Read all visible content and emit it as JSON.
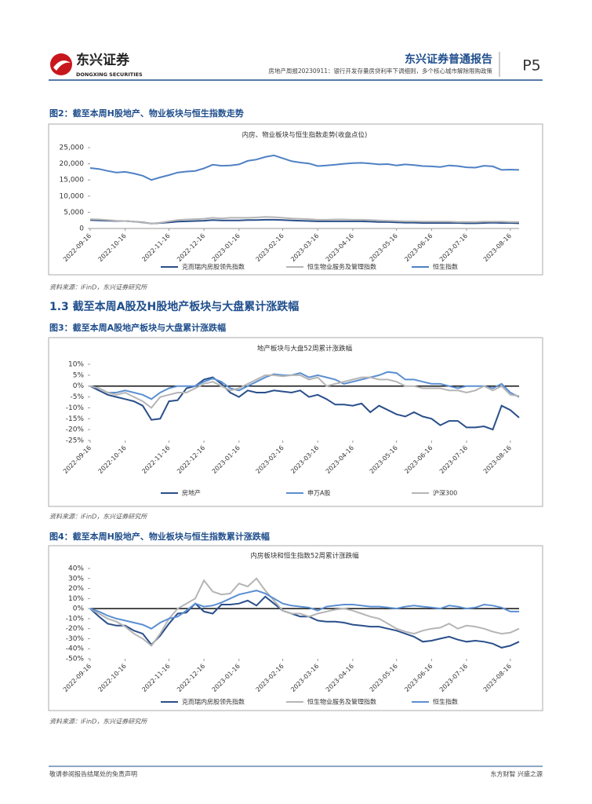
{
  "header": {
    "logo_cn": "东兴证券",
    "logo_en": "DONGXING SECURITIES",
    "report_type": "东兴证券普通报告",
    "report_title": "房地产周报20230911：银行开发存量房贷利率下调细则，多个核心城市解除限购政策",
    "page": "P5"
  },
  "section": "1.3 截至本周A股及H股地产板块与大盘累计涨跌幅",
  "figures": [
    {
      "title": "图2：截至本周H股地产、物业板块与恒生指数走势",
      "source": "资料来源：iFinD，东兴证券研究所"
    },
    {
      "title": "图3：截至本周A股地产板块与大盘累计涨跌幅",
      "source": "资料来源：iFinD，东兴证券研究所"
    },
    {
      "title": "图4：截至本周H股地产、物业板块与恒生指数累计涨跌幅",
      "source": "资料来源：iFinD，东兴证券研究所"
    }
  ],
  "footer": {
    "left": "敬请参阅报告结尾处的免责声明",
    "right": "东方财智 兴盛之源"
  },
  "chart_data": [
    {
      "type": "line",
      "title": "内房、物业板块与恒生指数走势(收盘点位)",
      "categories": [
        "2022-09-16",
        null,
        null,
        null,
        "2022-10-16",
        null,
        null,
        null,
        null,
        "2022-11-16",
        null,
        null,
        null,
        "2022-12-16",
        null,
        null,
        null,
        "2023-01-16",
        null,
        null,
        null,
        null,
        "2023-02-16",
        null,
        null,
        null,
        "2023-03-16",
        null,
        null,
        null,
        "2023-04-16",
        null,
        null,
        null,
        null,
        "2023-05-16",
        null,
        null,
        null,
        "2023-06-16",
        null,
        null,
        null,
        "2023-07-16",
        null,
        null,
        null,
        null,
        "2023-08-16",
        null
      ],
      "ylim": [
        0,
        25000
      ],
      "yticks": [
        0,
        {
          "value": 5000,
          "label": "5,000"
        },
        {
          "value": 10000,
          "label": "10,000"
        },
        {
          "value": 15000,
          "label": "15,000"
        },
        {
          "value": 20000,
          "label": "20,000"
        },
        {
          "value": 25000,
          "label": "25,000"
        }
      ],
      "series": [
        {
          "name": "克而瑞内房股领先指数",
          "color": "#2a4f8a",
          "values": [
            2600,
            2500,
            2400,
            2300,
            2300,
            2100,
            1900,
            1500,
            1700,
            1900,
            2100,
            2200,
            2300,
            2400,
            2600,
            2500,
            2500,
            2500,
            2600,
            2600,
            2700,
            2700,
            2600,
            2500,
            2400,
            2300,
            2200,
            2200,
            2200,
            2200,
            2200,
            2200,
            2100,
            2000,
            2000,
            1900,
            1800,
            1800,
            1700,
            1700,
            1700,
            1700,
            1700,
            1600,
            1600,
            1700,
            1800,
            1700,
            1700,
            1600
          ]
        },
        {
          "name": "恒生物业服务及管理指数",
          "color": "#b5b5b5",
          "values": [
            2900,
            2800,
            2600,
            2400,
            2300,
            2100,
            1800,
            1500,
            1800,
            2200,
            2600,
            2800,
            2900,
            3000,
            3300,
            3100,
            3300,
            3300,
            3300,
            3400,
            3600,
            3500,
            3300,
            3100,
            3000,
            2900,
            2700,
            2700,
            2800,
            2800,
            2700,
            2700,
            2600,
            2500,
            2400,
            2300,
            2200,
            2200,
            2100,
            2100,
            2100,
            2100,
            2000,
            2000,
            2000,
            2100,
            2100,
            2100,
            2000,
            2000
          ]
        },
        {
          "name": "恒生指数",
          "color": "#4f81c4",
          "values": [
            18700,
            18400,
            17800,
            17300,
            17500,
            17000,
            16300,
            15000,
            15800,
            16500,
            17300,
            17600,
            17800,
            18600,
            19700,
            19400,
            19500,
            19800,
            20900,
            21300,
            22100,
            22600,
            21700,
            20800,
            20400,
            20100,
            19300,
            19500,
            19700,
            20000,
            20200,
            20300,
            20100,
            19800,
            19900,
            19500,
            19800,
            19600,
            19300,
            19200,
            19000,
            19500,
            19300,
            18900,
            18800,
            19400,
            19200,
            18100,
            18200,
            18100
          ]
        }
      ]
    },
    {
      "type": "line",
      "title": "地产板块与大盘52周累计涨跌幅",
      "categories": [
        "2022-09-16",
        null,
        null,
        null,
        "2022-10-16",
        null,
        null,
        null,
        null,
        "2022-11-16",
        null,
        null,
        null,
        "2022-12-16",
        null,
        null,
        null,
        "2023-01-16",
        null,
        null,
        null,
        null,
        "2023-02-16",
        null,
        null,
        null,
        "2023-03-16",
        null,
        null,
        null,
        "2023-04-16",
        null,
        null,
        null,
        null,
        "2023-05-16",
        null,
        null,
        null,
        "2023-06-16",
        null,
        null,
        null,
        "2023-07-16",
        null,
        null,
        null,
        null,
        "2023-08-16",
        null
      ],
      "ylim": [
        -25,
        10
      ],
      "yticks": [
        {
          "value": -25,
          "label": "-25%"
        },
        {
          "value": -20,
          "label": "-20%"
        },
        {
          "value": -15,
          "label": "-15%"
        },
        {
          "value": -10,
          "label": "-10%"
        },
        {
          "value": -5,
          "label": "-5%"
        },
        {
          "value": 0,
          "label": "0%"
        },
        {
          "value": 5,
          "label": "5%"
        },
        {
          "value": 10,
          "label": "10%"
        }
      ],
      "series": [
        {
          "name": "房地产",
          "color": "#2a4f8a",
          "values": [
            0,
            -2,
            -4,
            -5,
            -6,
            -7,
            -9,
            -15.5,
            -15,
            -7,
            -6.5,
            -1,
            0,
            3,
            4,
            1,
            -3,
            -5,
            -2,
            -3,
            -3,
            -2,
            -2.5,
            -3,
            -2,
            -5,
            -4,
            -6,
            -8.5,
            -8.5,
            -9,
            -8,
            -12,
            -9,
            -11,
            -13,
            -14,
            -12,
            -14,
            -15,
            -18,
            -16,
            -16,
            -19,
            -19,
            -18.5,
            -20,
            -9,
            -11,
            -14.5
          ]
        },
        {
          "name": "申万A股",
          "color": "#5b8fd1",
          "values": [
            0,
            -1,
            -3,
            -3,
            -2,
            -3,
            -4,
            -6,
            -3,
            -1,
            0,
            0,
            0,
            2,
            3.5,
            2,
            -1,
            -2,
            0,
            2,
            4,
            5.5,
            5,
            5,
            6,
            4,
            5,
            4,
            3,
            1,
            2,
            3,
            4,
            5,
            6.5,
            6,
            3,
            3,
            2,
            1,
            1,
            0,
            -1,
            0,
            0,
            0,
            -1,
            1,
            -3,
            -5
          ]
        },
        {
          "name": "沪深300",
          "color": "#b5b5b5",
          "values": [
            0,
            -1,
            -3,
            -4,
            -3,
            -5,
            -7,
            -10,
            -5,
            -4,
            -3,
            -3,
            -1,
            1,
            2,
            0,
            -2,
            -1,
            1,
            3,
            5,
            5,
            4.5,
            5,
            5,
            3,
            4,
            0,
            1,
            2,
            3,
            4,
            4,
            3,
            3,
            2,
            0,
            0,
            -1,
            -1,
            -1,
            -2,
            -2,
            -3,
            -2,
            0,
            -2,
            0,
            -4,
            -4.5
          ]
        }
      ]
    },
    {
      "type": "line",
      "title": "内房板块和恒生指数52周累计涨跌幅",
      "categories": [
        "2022-09-16",
        null,
        null,
        null,
        "2022-10-16",
        null,
        null,
        null,
        null,
        "2022-11-16",
        null,
        null,
        null,
        "2022-12-16",
        null,
        null,
        null,
        "2023-01-16",
        null,
        null,
        null,
        null,
        "2023-02-16",
        null,
        null,
        null,
        "2023-03-16",
        null,
        null,
        null,
        "2023-04-16",
        null,
        null,
        null,
        null,
        "2023-05-16",
        null,
        null,
        null,
        "2023-06-16",
        null,
        null,
        null,
        "2023-07-16",
        null,
        null,
        null,
        null,
        "2023-08-16",
        null
      ],
      "ylim": [
        -50,
        40
      ],
      "yticks": [
        {
          "value": -50,
          "label": "-50%"
        },
        {
          "value": -40,
          "label": "-40%"
        },
        {
          "value": -30,
          "label": "-30%"
        },
        {
          "value": -20,
          "label": "-20%"
        },
        {
          "value": -10,
          "label": "-10%"
        },
        {
          "value": 0,
          "label": "0%"
        },
        {
          "value": 10,
          "label": "10%"
        },
        {
          "value": 20,
          "label": "20%"
        },
        {
          "value": 30,
          "label": "30%"
        },
        {
          "value": 40,
          "label": "40%"
        }
      ],
      "series": [
        {
          "name": "克而瑞内房股领先指数",
          "color": "#2a4f8a",
          "values": [
            0,
            -8,
            -15,
            -17,
            -17,
            -22,
            -25,
            -36,
            -27,
            -15,
            -5,
            -4,
            5,
            -3,
            -5,
            4,
            4,
            5,
            8,
            3,
            12,
            5,
            -2,
            -5,
            -8,
            -8,
            -12,
            -13,
            -13,
            -14,
            -16,
            -17,
            -18,
            -18,
            -20,
            -22,
            -25,
            -28,
            -33,
            -32,
            -30,
            -28,
            -31,
            -33,
            -32,
            -33,
            -35,
            -39,
            -37,
            -33
          ]
        },
        {
          "name": "恒生物业服务及管理指数",
          "color": "#b5b5b5",
          "values": [
            0,
            -5,
            -10,
            -13,
            -18,
            -25,
            -30,
            -37,
            -25,
            -10,
            0,
            5,
            10,
            28,
            17,
            14,
            15,
            25,
            22,
            30,
            18,
            8,
            -2,
            -5,
            -5,
            -8,
            -5,
            -3,
            -1,
            0,
            -2,
            -5,
            -8,
            -10,
            -15,
            -20,
            -23,
            -25,
            -22,
            -20,
            -19,
            -15,
            -20,
            -17,
            -18,
            -20,
            -23,
            -25,
            -24,
            -20
          ]
        },
        {
          "name": "恒生指数",
          "color": "#5b8fd1",
          "values": [
            0,
            -3,
            -7,
            -10,
            -12,
            -14,
            -16,
            -20,
            -14,
            -10,
            -8,
            -2,
            5,
            2,
            3,
            6,
            10,
            14,
            16,
            18,
            15,
            10,
            5,
            3,
            2,
            1,
            -2,
            2,
            3,
            4,
            4,
            3,
            2,
            2,
            1,
            0,
            2,
            3,
            2,
            1,
            0,
            3,
            2,
            0,
            1,
            4,
            3,
            1,
            -3,
            -3
          ]
        }
      ]
    }
  ]
}
